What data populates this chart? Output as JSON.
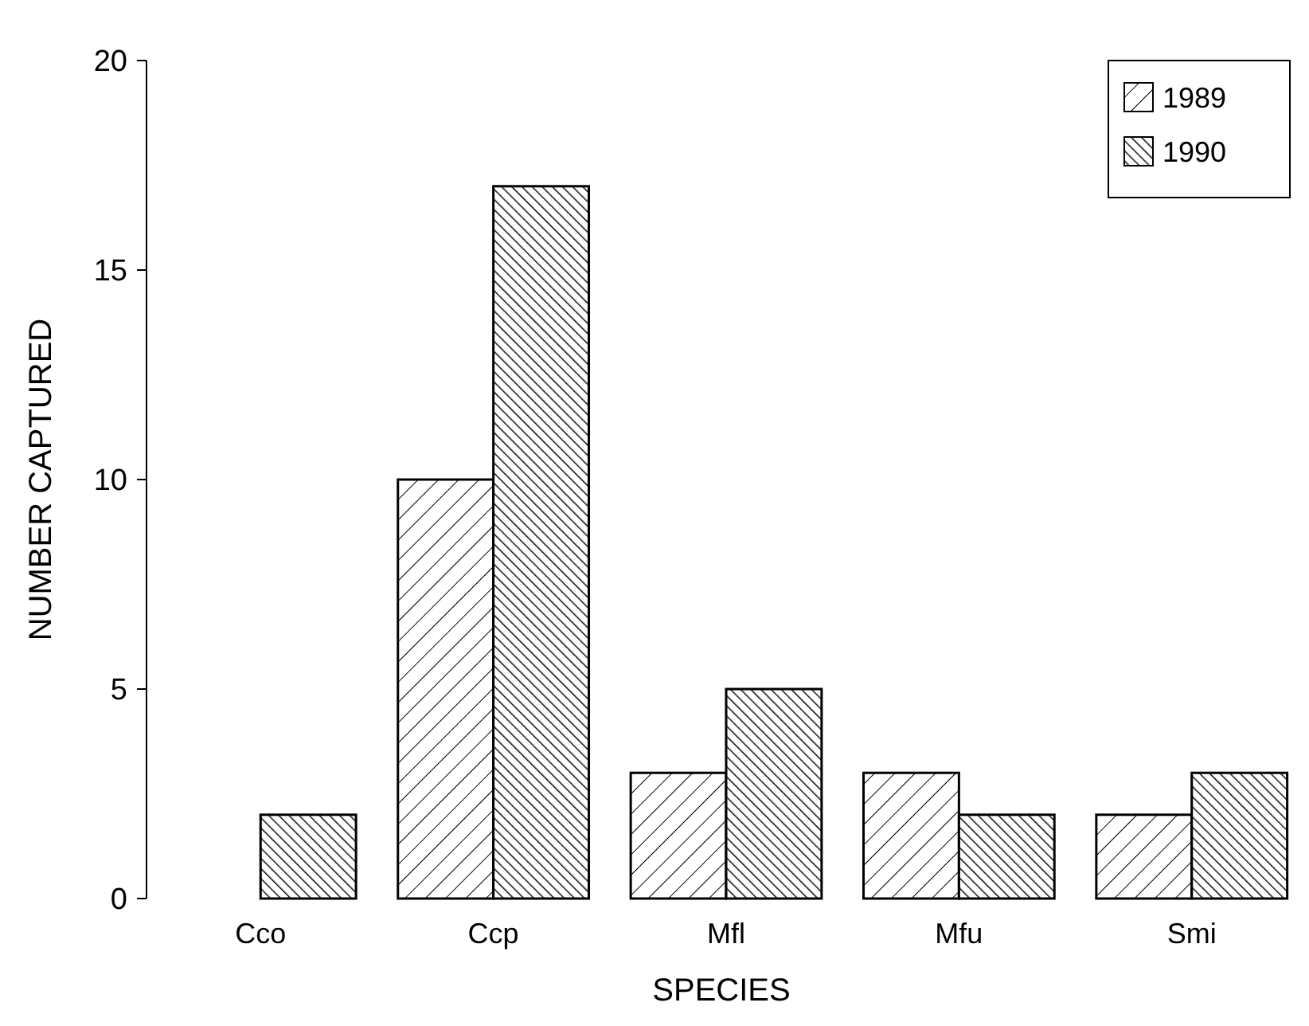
{
  "chart_data": {
    "type": "bar",
    "xlabel": "SPECIES",
    "ylabel": "NUMBER CAPTURED",
    "categories": [
      "Cco",
      "Ccp",
      "Mfl",
      "Mfu",
      "Smi"
    ],
    "series": [
      {
        "name": "1989",
        "color": "#000000",
        "values": [
          0,
          10,
          3,
          3,
          2
        ]
      },
      {
        "name": "1990",
        "color": "#000000",
        "values": [
          2,
          17,
          5,
          2,
          3
        ]
      }
    ],
    "ylim": [
      0,
      20
    ],
    "yticks": [
      0,
      5,
      10,
      15,
      20
    ],
    "grid": false,
    "legend": "top right"
  }
}
